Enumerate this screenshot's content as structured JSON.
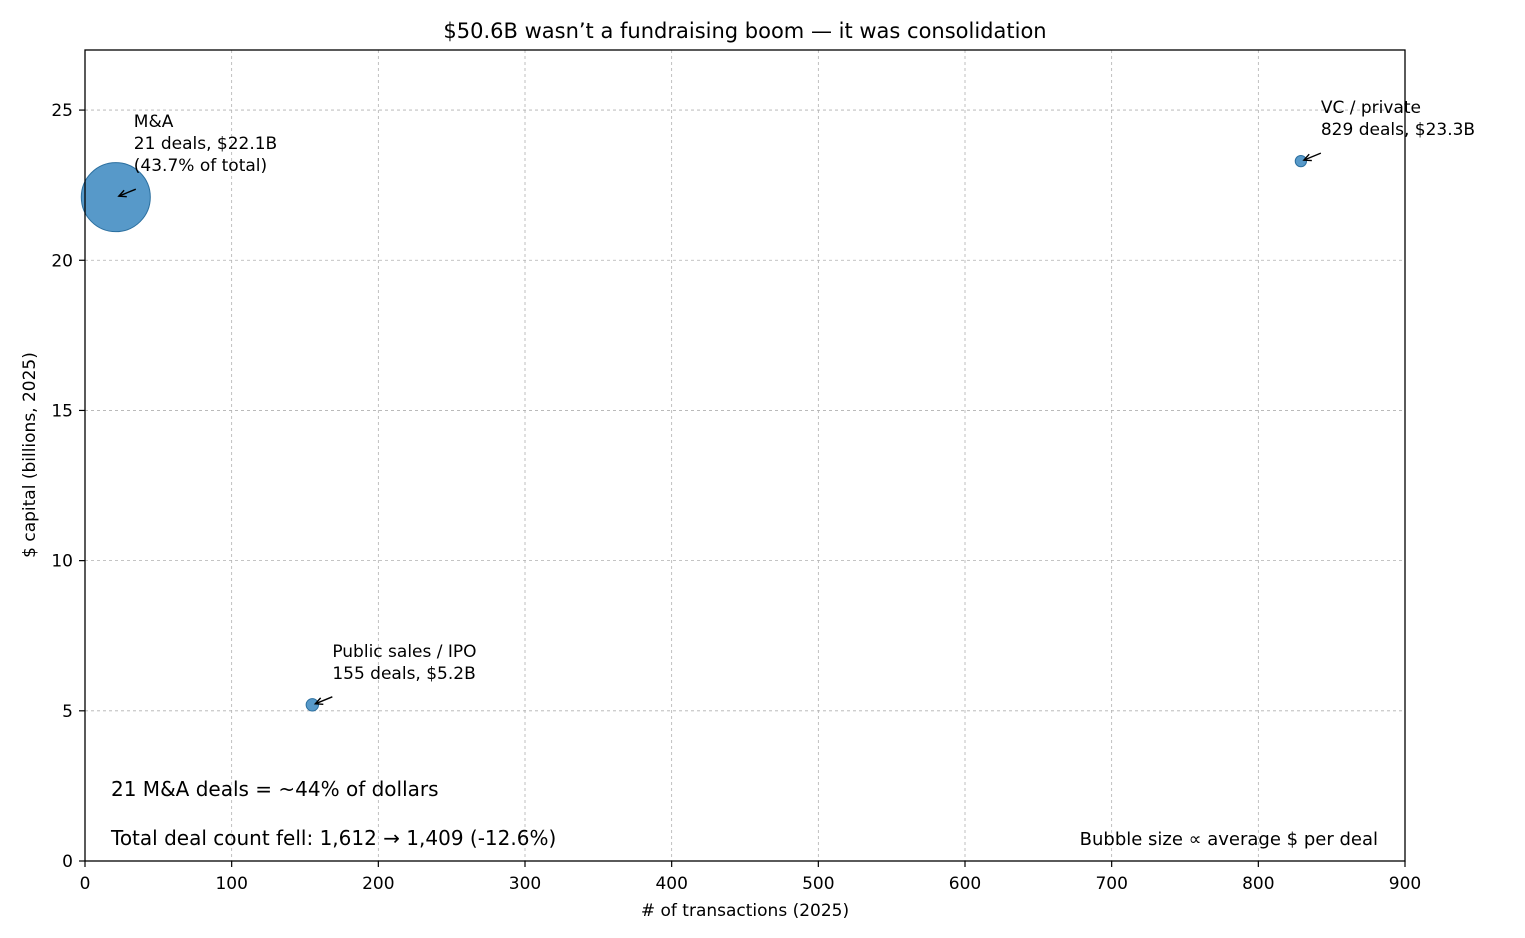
{
  "chart_data": {
    "type": "scatter",
    "title": "$50.6B wasn’t a fundraising boom — it was consolidation",
    "xlabel": "# of transactions (2025)",
    "ylabel": "$ capital (billions, 2025)",
    "xlim": [
      0,
      900
    ],
    "ylim": [
      0,
      27
    ],
    "xticks": [
      "0",
      "100",
      "200",
      "300",
      "400",
      "500",
      "600",
      "700",
      "800",
      "900"
    ],
    "yticks": [
      "0",
      "5",
      "10",
      "15",
      "20",
      "25"
    ],
    "grid": true,
    "bubble_color": "#3a87c0",
    "points": [
      {
        "x": 21,
        "y": 22.1,
        "avg_per_deal_b": 1.052,
        "label_lines": [
          "M&A",
          "21 deals, $22.1B",
          "(43.7% of total)"
        ]
      },
      {
        "x": 155,
        "y": 5.2,
        "avg_per_deal_b": 0.034,
        "label_lines": [
          "Public sales / IPO",
          "155 deals, $5.2B"
        ]
      },
      {
        "x": 829,
        "y": 23.3,
        "avg_per_deal_b": 0.028,
        "label_lines": [
          "VC / private",
          "829 deals, $23.3B"
        ]
      }
    ],
    "notes": [
      "21 M&A deals = ~44% of dollars",
      "Total deal count fell: 1,612 → 1,409 (-12.6%)"
    ],
    "size_note": "Bubble size ∝ average $ per deal"
  }
}
